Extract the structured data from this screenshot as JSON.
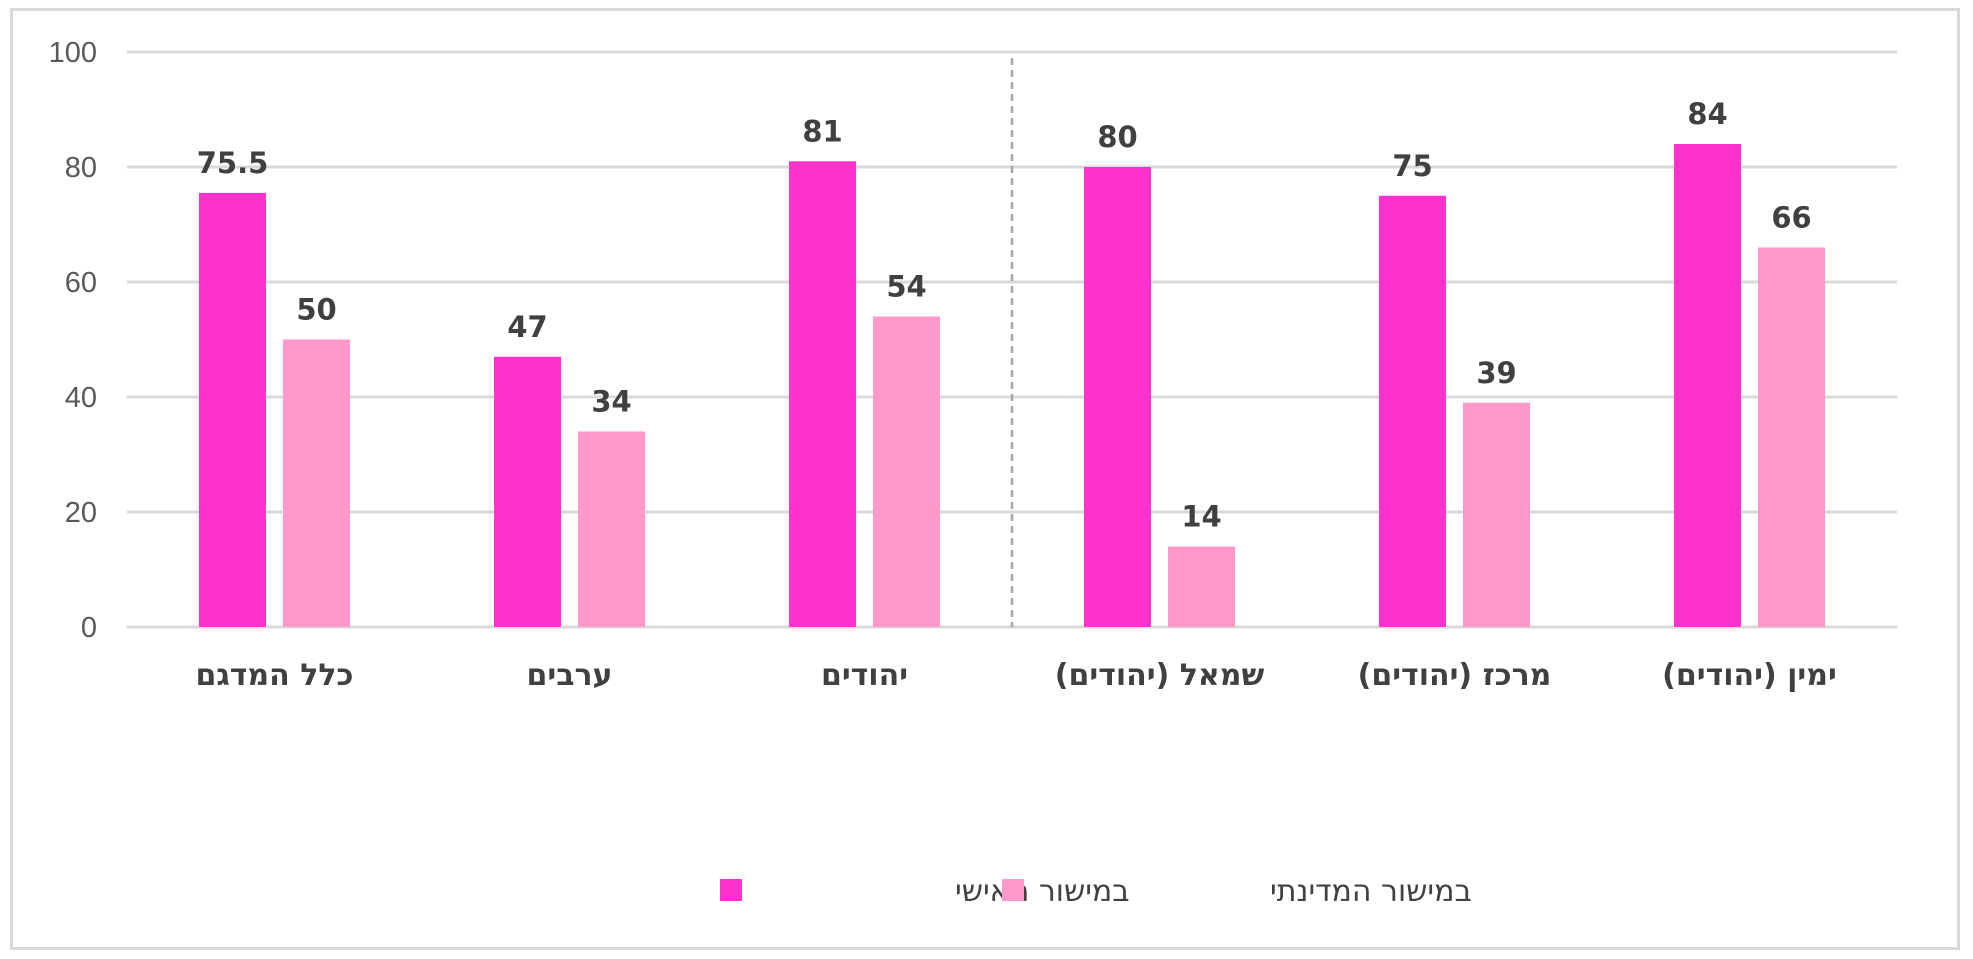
{
  "chart_data": {
    "type": "bar",
    "categories": [
      "כלל המדגם",
      "ערבים",
      "יהודים",
      "שמאל (יהודים)",
      "מרכז (יהודים)",
      "ימין (יהודים)"
    ],
    "series": [
      {
        "name": "במישור האישי",
        "values": [
          75.5,
          47,
          81,
          80,
          75,
          84
        ],
        "color": "#ff33cc"
      },
      {
        "name": "במישור המדינתי",
        "values": [
          50,
          34,
          54,
          14,
          39,
          66
        ],
        "color": "#ff99cc"
      }
    ],
    "yticks": [
      0,
      20,
      40,
      60,
      80,
      100
    ],
    "ylim": [
      0,
      100
    ],
    "grid": true,
    "divider_after_category": 2,
    "legend_position": "bottom",
    "colors": {
      "gridline": "#d9d9d9",
      "divider": "#a6a6a6",
      "label": "#404040",
      "axis_text": "#595959"
    }
  }
}
